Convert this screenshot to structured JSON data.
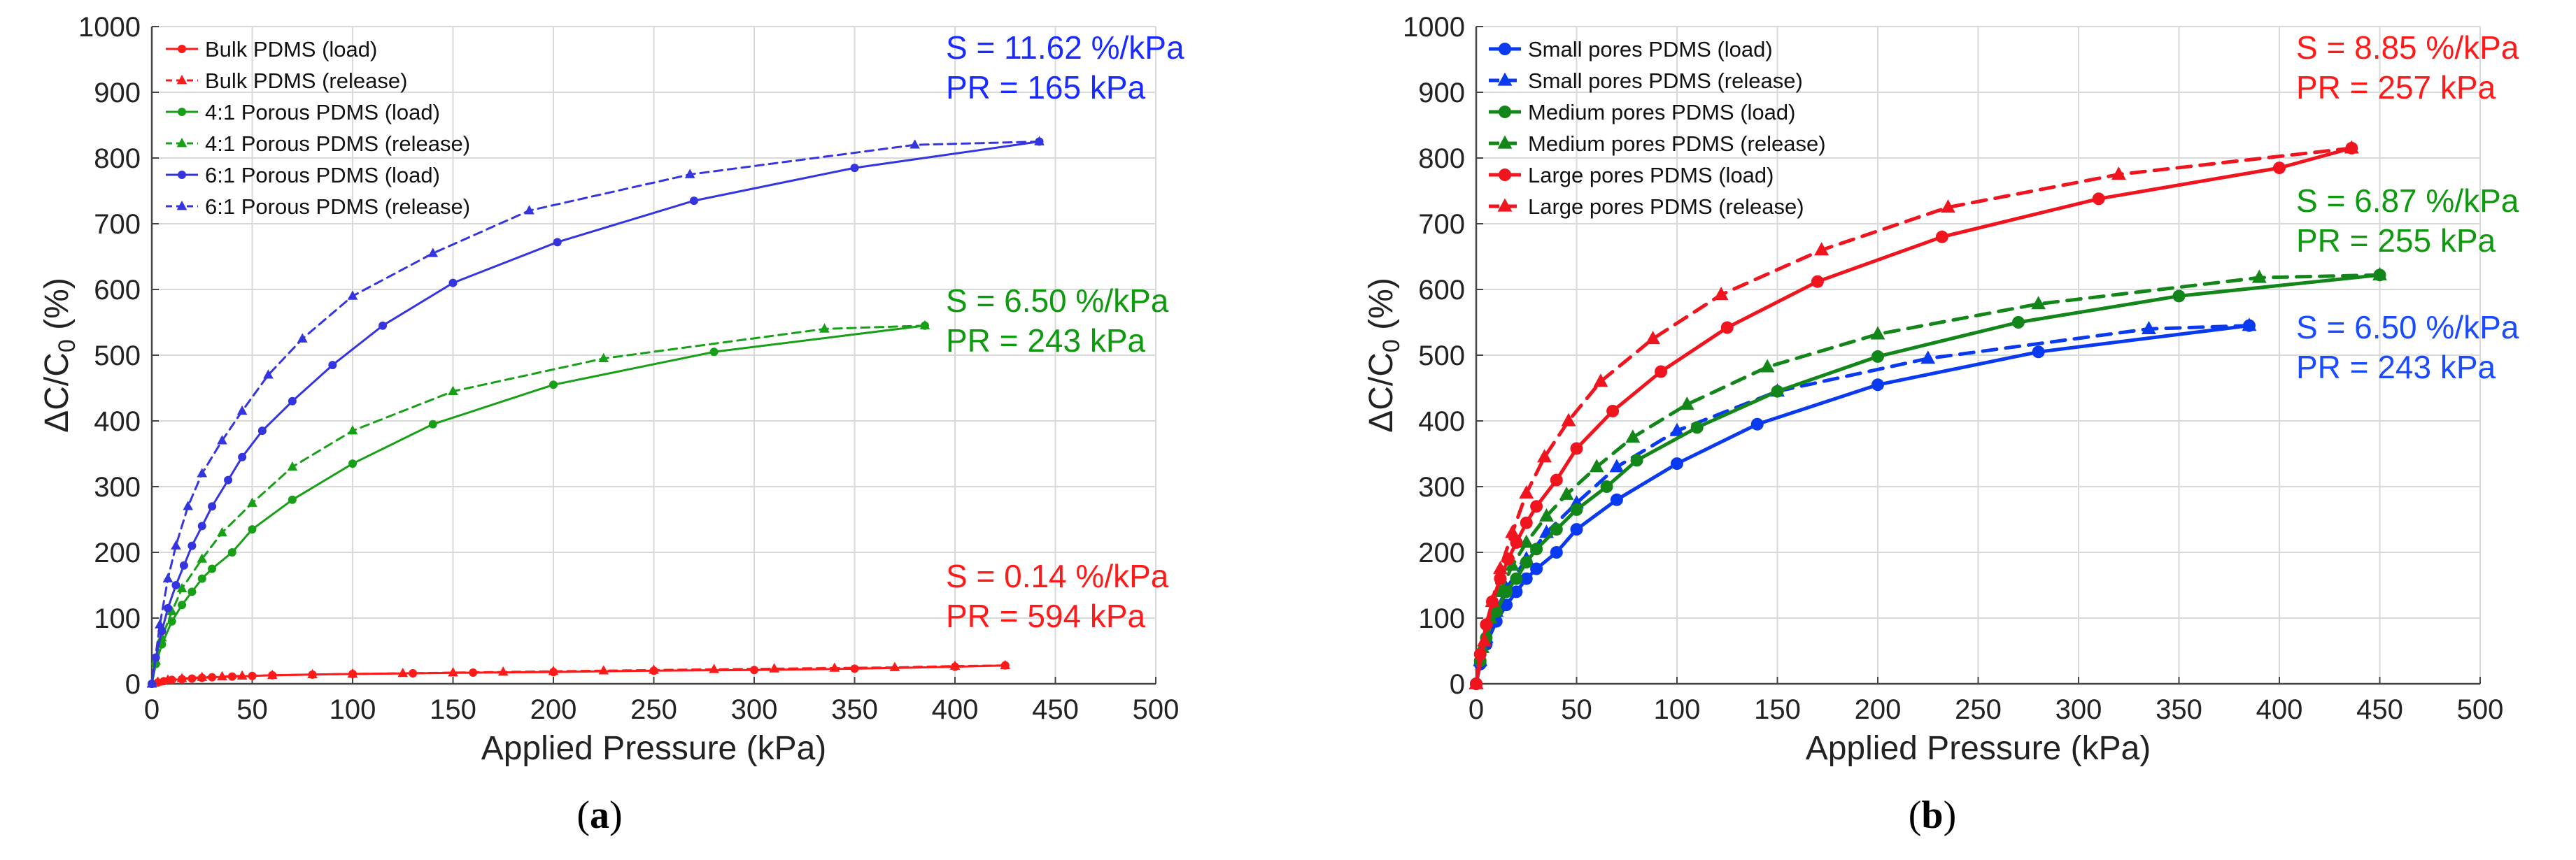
{
  "chart_data": [
    {
      "panel_label": "(a)",
      "panel_letter": "a",
      "type": "line",
      "xlabel": "Applied Pressure (kPa)",
      "ylabel": "ΔC/C0 (%)",
      "xlim": [
        0,
        500
      ],
      "ylim": [
        0,
        1000
      ],
      "xticks": [
        0,
        50,
        100,
        150,
        200,
        250,
        300,
        350,
        400,
        450,
        500
      ],
      "yticks": [
        0,
        100,
        200,
        300,
        400,
        500,
        600,
        700,
        800,
        900,
        1000
      ],
      "grid": true,
      "legend_position": "top-left",
      "series": [
        {
          "name": "Bulk PDMS (load)",
          "color": "#ff1a1a",
          "line": "solid",
          "marker": "circle",
          "line_width": 3,
          "marker_size": 6,
          "x": [
            0,
            3,
            6,
            10,
            15,
            20,
            25,
            30,
            40,
            50,
            60,
            80,
            100,
            130,
            160,
            200,
            250,
            300,
            350,
            400,
            425
          ],
          "y": [
            0,
            2,
            4,
            6,
            7,
            8,
            9,
            10,
            11,
            12,
            13,
            14,
            15,
            16,
            17,
            18,
            20,
            21,
            23,
            26,
            28
          ]
        },
        {
          "name": "Bulk PDMS (release)",
          "color": "#ff1a1a",
          "line": "dashed",
          "marker": "triangle",
          "line_width": 3,
          "marker_size": 7,
          "x": [
            425,
            400,
            370,
            340,
            310,
            280,
            250,
            225,
            200,
            175,
            150,
            125,
            100,
            80,
            60,
            45,
            35,
            25,
            15,
            8,
            3,
            0
          ],
          "y": [
            28,
            27,
            25,
            24,
            23,
            22,
            21,
            20,
            19,
            18,
            17,
            16,
            15,
            14,
            13,
            12,
            11,
            10,
            8,
            6,
            3,
            0
          ]
        },
        {
          "name": "4:1 Porous PDMS (load)",
          "color": "#17a017",
          "line": "solid",
          "marker": "circle",
          "line_width": 3,
          "marker_size": 6,
          "x": [
            0,
            2,
            5,
            10,
            15,
            20,
            25,
            30,
            40,
            50,
            70,
            100,
            140,
            200,
            280,
            385
          ],
          "y": [
            0,
            30,
            60,
            95,
            120,
            140,
            160,
            175,
            200,
            235,
            280,
            335,
            395,
            455,
            505,
            545
          ]
        },
        {
          "name": "4:1 Porous PDMS (release)",
          "color": "#17a017",
          "line": "dashed",
          "marker": "triangle",
          "line_width": 3,
          "marker_size": 7,
          "x": [
            385,
            335,
            225,
            150,
            100,
            70,
            50,
            35,
            25,
            15,
            10,
            5,
            2,
            0
          ],
          "y": [
            545,
            540,
            495,
            445,
            385,
            330,
            275,
            230,
            190,
            145,
            110,
            70,
            35,
            0
          ]
        },
        {
          "name": "6:1 Porous PDMS (load)",
          "color": "#3535e0",
          "line": "solid",
          "marker": "circle",
          "line_width": 3,
          "marker_size": 6,
          "x": [
            0,
            2,
            5,
            8,
            12,
            16,
            20,
            25,
            30,
            38,
            45,
            55,
            70,
            90,
            115,
            150,
            202,
            270,
            350,
            442
          ],
          "y": [
            0,
            40,
            80,
            115,
            150,
            180,
            210,
            240,
            270,
            310,
            345,
            385,
            430,
            485,
            545,
            610,
            672,
            735,
            785,
            825
          ]
        },
        {
          "name": "6:1 Porous PDMS (release)",
          "color": "#3535e0",
          "line": "dashed",
          "marker": "triangle",
          "line_width": 3,
          "marker_size": 7,
          "x": [
            442,
            380,
            268,
            188,
            140,
            100,
            75,
            58,
            45,
            35,
            25,
            18,
            12,
            8,
            4,
            0
          ],
          "y": [
            825,
            820,
            775,
            720,
            655,
            590,
            525,
            470,
            415,
            370,
            320,
            270,
            210,
            160,
            90,
            0
          ]
        }
      ],
      "annotations": [
        {
          "lines": [
            "S = 11.62 %/kPa",
            "PR = 165 kPa"
          ],
          "color": "#1a2bff"
        },
        {
          "lines": [
            "S = 6.50 %/kPa",
            "PR = 243 kPa"
          ],
          "color": "#0e9a0e"
        },
        {
          "lines": [
            "S = 0.14 %/kPa",
            "PR = 594 kPa"
          ],
          "color": "#ff1a1a"
        }
      ]
    },
    {
      "panel_label": "(b)",
      "panel_letter": "b",
      "type": "line",
      "xlabel": "Applied Pressure (kPa)",
      "ylabel": "ΔC/C0 (%)",
      "xlim": [
        0,
        500
      ],
      "ylim": [
        0,
        1000
      ],
      "xticks": [
        0,
        50,
        100,
        150,
        200,
        250,
        300,
        350,
        400,
        450,
        500
      ],
      "yticks": [
        0,
        100,
        200,
        300,
        400,
        500,
        600,
        700,
        800,
        900,
        1000
      ],
      "grid": true,
      "legend_position": "top-left",
      "series": [
        {
          "name": "Small pores PDMS (load)",
          "color": "#0a3af0",
          "line": "solid",
          "marker": "circle",
          "line_width": 5,
          "marker_size": 9,
          "x": [
            0,
            2,
            5,
            10,
            15,
            20,
            25,
            30,
            40,
            50,
            70,
            100,
            140,
            200,
            280,
            385
          ],
          "y": [
            0,
            30,
            60,
            95,
            120,
            140,
            160,
            175,
            200,
            235,
            280,
            335,
            395,
            455,
            505,
            545
          ]
        },
        {
          "name": "Small pores PDMS (release)",
          "color": "#0a3af0",
          "line": "dashed",
          "marker": "triangle",
          "line_width": 5,
          "marker_size": 10,
          "x": [
            385,
            335,
            225,
            150,
            100,
            70,
            50,
            35,
            25,
            15,
            10,
            5,
            2,
            0
          ],
          "y": [
            545,
            540,
            495,
            445,
            385,
            330,
            275,
            230,
            190,
            145,
            110,
            70,
            35,
            0
          ]
        },
        {
          "name": "Medium pores PDMS (load)",
          "color": "#13861a",
          "line": "solid",
          "marker": "circle",
          "line_width": 5,
          "marker_size": 9,
          "x": [
            0,
            2,
            5,
            10,
            15,
            20,
            25,
            30,
            40,
            50,
            65,
            80,
            110,
            150,
            200,
            270,
            350,
            450
          ],
          "y": [
            0,
            35,
            70,
            110,
            140,
            160,
            185,
            205,
            235,
            265,
            300,
            340,
            390,
            445,
            498,
            550,
            590,
            622
          ]
        },
        {
          "name": "Medium pores PDMS (release)",
          "color": "#13861a",
          "line": "dashed",
          "marker": "triangle",
          "line_width": 5,
          "marker_size": 10,
          "x": [
            450,
            390,
            280,
            200,
            145,
            105,
            78,
            60,
            45,
            35,
            25,
            18,
            12,
            7,
            3,
            0
          ],
          "y": [
            622,
            618,
            578,
            532,
            482,
            425,
            375,
            330,
            288,
            255,
            215,
            180,
            140,
            100,
            55,
            0
          ]
        },
        {
          "name": "Large pores PDMS (load)",
          "color": "#f0141e",
          "line": "solid",
          "marker": "circle",
          "line_width": 5,
          "marker_size": 9,
          "x": [
            0,
            2,
            5,
            8,
            12,
            16,
            20,
            25,
            30,
            40,
            50,
            68,
            92,
            125,
            170,
            232,
            310,
            400,
            436
          ],
          "y": [
            0,
            45,
            90,
            125,
            160,
            190,
            215,
            245,
            270,
            310,
            358,
            415,
            475,
            542,
            612,
            680,
            738,
            785,
            815
          ]
        },
        {
          "name": "Large pores PDMS (release)",
          "color": "#f0141e",
          "line": "dashed",
          "marker": "triangle",
          "line_width": 5,
          "marker_size": 10,
          "x": [
            436,
            320,
            235,
            172,
            122,
            88,
            62,
            46,
            34,
            25,
            18,
            12,
            8,
            4,
            0
          ],
          "y": [
            815,
            775,
            725,
            660,
            592,
            525,
            460,
            400,
            345,
            290,
            230,
            175,
            125,
            65,
            0
          ]
        }
      ],
      "annotations": [
        {
          "lines": [
            "S = 8.85 %/kPa",
            "PR = 257 kPa"
          ],
          "color": "#ff1a1a"
        },
        {
          "lines": [
            "S = 6.87 %/kPa",
            "PR = 255 kPa"
          ],
          "color": "#0e9a0e"
        },
        {
          "lines": [
            "S = 6.50 %/kPa",
            "PR = 243 kPa"
          ],
          "color": "#1a4bff"
        }
      ]
    }
  ]
}
